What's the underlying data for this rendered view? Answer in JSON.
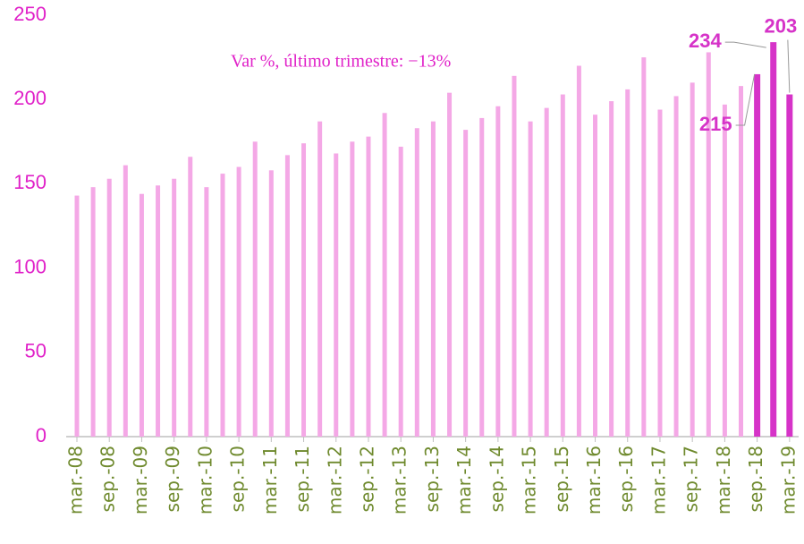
{
  "chart_data": {
    "type": "bar",
    "annotation": "Var %, último trimestre: −13%",
    "categories": [
      "mar.-08",
      null,
      "sep.-08",
      null,
      "mar.-09",
      null,
      "sep.-09",
      null,
      "mar.-10",
      null,
      "sep.-10",
      null,
      "mar.-11",
      null,
      "sep.-11",
      null,
      "mar.-12",
      null,
      "sep.-12",
      null,
      "mar.-13",
      null,
      "sep.-13",
      null,
      "mar.-14",
      null,
      "sep.-14",
      null,
      "mar.-15",
      null,
      "sep.-15",
      null,
      "mar.-16",
      null,
      "sep.-16",
      null,
      "mar.-17",
      null,
      "sep.-17",
      null,
      "mar.-18",
      null,
      "sep.-18",
      null,
      "mar.-19"
    ],
    "values": [
      143,
      148,
      153,
      161,
      144,
      149,
      153,
      166,
      148,
      156,
      160,
      175,
      158,
      167,
      174,
      187,
      168,
      175,
      178,
      192,
      172,
      183,
      187,
      204,
      182,
      189,
      196,
      214,
      187,
      195,
      203,
      220,
      191,
      199,
      206,
      225,
      194,
      202,
      210,
      228,
      197,
      208,
      215,
      234,
      203
    ],
    "colors": [
      "#f4a8e6",
      "#f4a8e6",
      "#f4a8e6",
      "#f4a8e6",
      "#f4a8e6",
      "#f4a8e6",
      "#f4a8e6",
      "#f4a8e6",
      "#f4a8e6",
      "#f4a8e6",
      "#f4a8e6",
      "#f4a8e6",
      "#f4a8e6",
      "#f4a8e6",
      "#f4a8e6",
      "#f4a8e6",
      "#f4a8e6",
      "#f4a8e6",
      "#f4a8e6",
      "#f4a8e6",
      "#f4a8e6",
      "#f4a8e6",
      "#f4a8e6",
      "#f4a8e6",
      "#f4a8e6",
      "#f4a8e6",
      "#f4a8e6",
      "#f4a8e6",
      "#f4a8e6",
      "#f4a8e6",
      "#f4a8e6",
      "#f4a8e6",
      "#f4a8e6",
      "#f4a8e6",
      "#f4a8e6",
      "#f4a8e6",
      "#f4a8e6",
      "#f4a8e6",
      "#f4a8e6",
      "#f4a8e6",
      "#f4a8e6",
      "#f4a8e6",
      "#d633c8",
      "#d633c8",
      "#d633c8"
    ],
    "label_color": "#d633c8",
    "ylim": [
      0,
      250
    ],
    "yticks": [
      0,
      50,
      100,
      150,
      200,
      250
    ],
    "grid": false
  }
}
